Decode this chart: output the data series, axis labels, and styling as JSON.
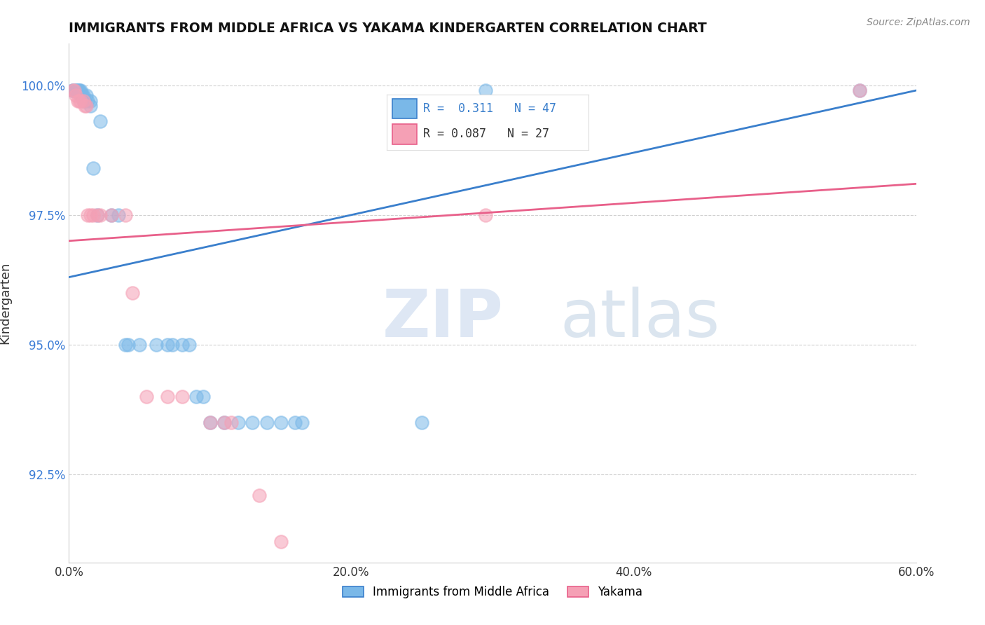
{
  "title": "IMMIGRANTS FROM MIDDLE AFRICA VS YAKAMA KINDERGARTEN CORRELATION CHART",
  "source_text": "Source: ZipAtlas.com",
  "ylabel": "Kindergarten",
  "xlim": [
    0.0,
    0.6
  ],
  "ylim": [
    0.908,
    1.008
  ],
  "xtick_labels": [
    "0.0%",
    "20.0%",
    "40.0%",
    "60.0%"
  ],
  "xtick_vals": [
    0.0,
    0.2,
    0.4,
    0.6
  ],
  "ytick_labels": [
    "92.5%",
    "95.0%",
    "97.5%",
    "100.0%"
  ],
  "ytick_vals": [
    0.925,
    0.95,
    0.975,
    1.0
  ],
  "blue_color": "#7ab8e8",
  "pink_color": "#f5a0b5",
  "blue_line_color": "#3a7fcc",
  "pink_line_color": "#e8608a",
  "R_blue": 0.311,
  "N_blue": 47,
  "R_pink": 0.087,
  "N_pink": 27,
  "blue_points": [
    [
      0.003,
      0.999
    ],
    [
      0.003,
      0.999
    ],
    [
      0.004,
      0.999
    ],
    [
      0.004,
      0.999
    ],
    [
      0.005,
      0.999
    ],
    [
      0.005,
      0.999
    ],
    [
      0.006,
      0.999
    ],
    [
      0.006,
      0.999
    ],
    [
      0.007,
      0.999
    ],
    [
      0.007,
      0.999
    ],
    [
      0.008,
      0.999
    ],
    [
      0.008,
      0.998
    ],
    [
      0.009,
      0.998
    ],
    [
      0.009,
      0.998
    ],
    [
      0.01,
      0.998
    ],
    [
      0.01,
      0.997
    ],
    [
      0.011,
      0.997
    ],
    [
      0.012,
      0.998
    ],
    [
      0.013,
      0.997
    ],
    [
      0.015,
      0.997
    ],
    [
      0.015,
      0.996
    ],
    [
      0.017,
      0.984
    ],
    [
      0.02,
      0.975
    ],
    [
      0.022,
      0.993
    ],
    [
      0.03,
      0.975
    ],
    [
      0.035,
      0.975
    ],
    [
      0.04,
      0.95
    ],
    [
      0.042,
      0.95
    ],
    [
      0.05,
      0.95
    ],
    [
      0.062,
      0.95
    ],
    [
      0.07,
      0.95
    ],
    [
      0.073,
      0.95
    ],
    [
      0.08,
      0.95
    ],
    [
      0.085,
      0.95
    ],
    [
      0.09,
      0.94
    ],
    [
      0.095,
      0.94
    ],
    [
      0.1,
      0.935
    ],
    [
      0.11,
      0.935
    ],
    [
      0.12,
      0.935
    ],
    [
      0.13,
      0.935
    ],
    [
      0.14,
      0.935
    ],
    [
      0.15,
      0.935
    ],
    [
      0.16,
      0.935
    ],
    [
      0.165,
      0.935
    ],
    [
      0.25,
      0.935
    ],
    [
      0.295,
      0.999
    ],
    [
      0.56,
      0.999
    ]
  ],
  "pink_points": [
    [
      0.003,
      0.999
    ],
    [
      0.004,
      0.999
    ],
    [
      0.005,
      0.998
    ],
    [
      0.006,
      0.997
    ],
    [
      0.007,
      0.997
    ],
    [
      0.008,
      0.997
    ],
    [
      0.01,
      0.997
    ],
    [
      0.011,
      0.996
    ],
    [
      0.012,
      0.996
    ],
    [
      0.013,
      0.975
    ],
    [
      0.015,
      0.975
    ],
    [
      0.017,
      0.975
    ],
    [
      0.02,
      0.975
    ],
    [
      0.022,
      0.975
    ],
    [
      0.03,
      0.975
    ],
    [
      0.04,
      0.975
    ],
    [
      0.045,
      0.96
    ],
    [
      0.055,
      0.94
    ],
    [
      0.07,
      0.94
    ],
    [
      0.08,
      0.94
    ],
    [
      0.1,
      0.935
    ],
    [
      0.11,
      0.935
    ],
    [
      0.115,
      0.935
    ],
    [
      0.135,
      0.921
    ],
    [
      0.15,
      0.912
    ],
    [
      0.295,
      0.975
    ],
    [
      0.56,
      0.999
    ]
  ]
}
